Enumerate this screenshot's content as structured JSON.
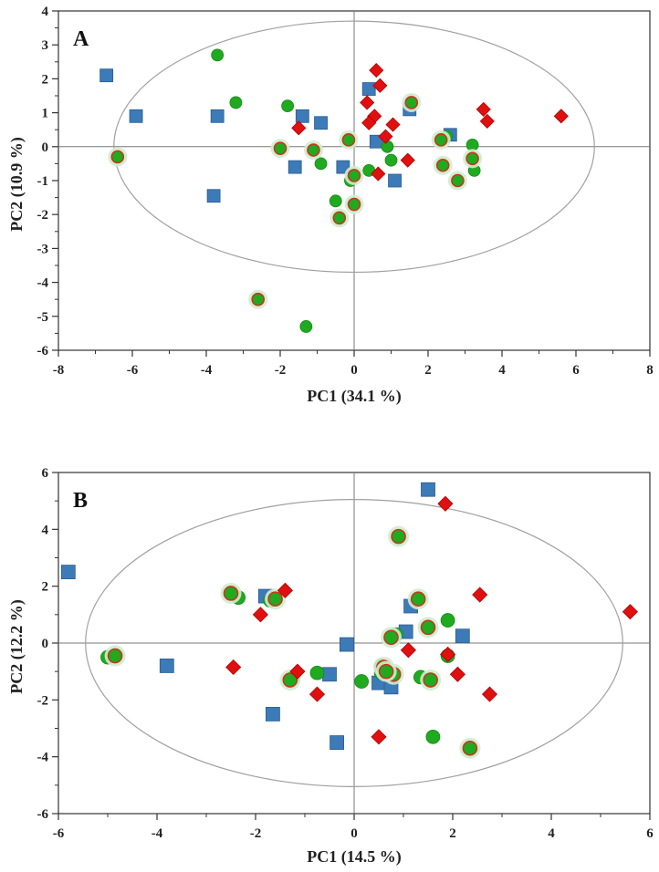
{
  "chart_data": [
    {
      "type": "scatter",
      "panel_label": "A",
      "xlabel": "PC1 (34.1 %)",
      "ylabel": "PC2 (10.9 %)",
      "xlim": [
        -8,
        8
      ],
      "ylim": [
        -6,
        4
      ],
      "xticks": [
        -8,
        -6,
        -4,
        -2,
        0,
        2,
        4,
        6,
        8
      ],
      "yticks": [
        4,
        3,
        2,
        1,
        0,
        -1,
        -2,
        -3,
        -4,
        -5,
        -6
      ],
      "confidence_ellipse": {
        "center": [
          0,
          0
        ],
        "radius_x": 6.5,
        "radius_y": 3.7
      },
      "colors": {
        "square": "#3d7ab8",
        "circle": "#1faa1f",
        "diamond": "#e01010",
        "circle_ringed_edge": "#c8361a",
        "glow": "#cfeccf"
      },
      "series": [
        {
          "name": "square",
          "marker": "square",
          "points": [
            [
              -6.7,
              2.1
            ],
            [
              -5.9,
              0.9
            ],
            [
              -3.7,
              0.9
            ],
            [
              -3.8,
              -1.45
            ],
            [
              -1.4,
              0.9
            ],
            [
              -0.9,
              0.7
            ],
            [
              -1.6,
              -0.6
            ],
            [
              -0.3,
              -0.6
            ],
            [
              0.4,
              1.7
            ],
            [
              0.6,
              0.15
            ],
            [
              1.5,
              1.1
            ],
            [
              2.6,
              0.35
            ],
            [
              1.1,
              -1.0
            ]
          ]
        },
        {
          "name": "circle",
          "marker": "circle",
          "points": [
            [
              -3.7,
              2.7
            ],
            [
              -3.2,
              1.3
            ],
            [
              -1.8,
              1.2
            ],
            [
              -0.9,
              -0.5
            ],
            [
              -0.1,
              -1.0
            ],
            [
              0.9,
              0.0
            ],
            [
              1.0,
              -0.4
            ],
            [
              0.4,
              -0.7
            ],
            [
              -0.5,
              -1.6
            ],
            [
              -1.3,
              -5.3
            ],
            [
              2.5,
              0.3
            ],
            [
              3.2,
              0.05
            ],
            [
              3.25,
              -0.7
            ]
          ]
        },
        {
          "name": "circle-ringed",
          "marker": "circle-ringed",
          "points": [
            [
              -6.4,
              -0.3
            ],
            [
              -2.0,
              -0.05
            ],
            [
              -1.1,
              -0.1
            ],
            [
              -0.15,
              0.2
            ],
            [
              0.0,
              -0.85
            ],
            [
              -0.4,
              -2.1
            ],
            [
              0.0,
              -1.7
            ],
            [
              1.55,
              1.3
            ],
            [
              2.35,
              0.2
            ],
            [
              2.4,
              -0.55
            ],
            [
              2.8,
              -1.0
            ],
            [
              3.2,
              -0.35
            ],
            [
              -2.6,
              -4.5
            ]
          ]
        },
        {
          "name": "diamond",
          "marker": "diamond",
          "points": [
            [
              0.6,
              2.25
            ],
            [
              0.7,
              1.8
            ],
            [
              0.35,
              1.3
            ],
            [
              0.55,
              0.9
            ],
            [
              0.85,
              0.3
            ],
            [
              1.05,
              0.65
            ],
            [
              0.4,
              0.7
            ],
            [
              -1.5,
              0.55
            ],
            [
              1.45,
              -0.4
            ],
            [
              0.65,
              -0.8
            ],
            [
              3.5,
              1.1
            ],
            [
              3.6,
              0.75
            ],
            [
              5.6,
              0.9
            ]
          ]
        }
      ]
    },
    {
      "type": "scatter",
      "panel_label": "B",
      "xlabel": "PC1 (14.5 %)",
      "ylabel": "PC2 (12.2 %)",
      "xlim": [
        -6,
        6
      ],
      "ylim": [
        -6,
        6
      ],
      "xticks": [
        -6,
        -4,
        -2,
        0,
        2,
        4,
        6
      ],
      "yticks": [
        6,
        4,
        2,
        0,
        -2,
        -4,
        -6
      ],
      "confidence_ellipse": {
        "center": [
          0,
          0
        ],
        "radius_x": 5.45,
        "radius_y": 5.05
      },
      "colors": {
        "square": "#3d7ab8",
        "circle": "#1faa1f",
        "diamond": "#e01010",
        "circle_ringed_edge": "#c8361a",
        "glow": "#cfeccf"
      },
      "series": [
        {
          "name": "square",
          "marker": "square",
          "points": [
            [
              -5.8,
              2.5
            ],
            [
              -3.8,
              -0.8
            ],
            [
              -1.8,
              1.65
            ],
            [
              -1.65,
              -2.5
            ],
            [
              -0.5,
              -1.1
            ],
            [
              -0.15,
              -0.05
            ],
            [
              -0.35,
              -3.5
            ],
            [
              0.5,
              -1.4
            ],
            [
              0.75,
              -1.55
            ],
            [
              1.05,
              0.4
            ],
            [
              1.15,
              1.3
            ],
            [
              1.5,
              5.4
            ],
            [
              2.2,
              0.25
            ]
          ]
        },
        {
          "name": "circle",
          "marker": "circle",
          "points": [
            [
              -5.0,
              -0.5
            ],
            [
              -2.35,
              1.6
            ],
            [
              -1.7,
              1.5
            ],
            [
              -1.25,
              -1.25
            ],
            [
              -0.75,
              -1.05
            ],
            [
              0.15,
              -1.35
            ],
            [
              0.85,
              0.3
            ],
            [
              1.35,
              -1.2
            ],
            [
              1.9,
              0.8
            ],
            [
              1.9,
              -0.45
            ],
            [
              1.6,
              -3.3
            ],
            [
              0.55,
              -1.05
            ],
            [
              0.55,
              -0.8
            ]
          ]
        },
        {
          "name": "circle-ringed",
          "marker": "circle-ringed",
          "points": [
            [
              -4.85,
              -0.45
            ],
            [
              -2.5,
              1.75
            ],
            [
              -1.6,
              1.55
            ],
            [
              -1.3,
              -1.3
            ],
            [
              0.6,
              -0.85
            ],
            [
              0.8,
              -1.1
            ],
            [
              0.75,
              0.2
            ],
            [
              0.9,
              3.75
            ],
            [
              1.3,
              1.55
            ],
            [
              1.5,
              0.55
            ],
            [
              1.55,
              -1.3
            ],
            [
              2.35,
              -3.7
            ],
            [
              0.65,
              -1.0
            ]
          ]
        },
        {
          "name": "diamond",
          "marker": "diamond",
          "points": [
            [
              -2.45,
              -0.85
            ],
            [
              -1.9,
              1.0
            ],
            [
              -1.4,
              1.85
            ],
            [
              -1.15,
              -1.0
            ],
            [
              -0.75,
              -1.8
            ],
            [
              0.5,
              -3.3
            ],
            [
              1.1,
              -0.25
            ],
            [
              1.85,
              4.9
            ],
            [
              1.9,
              -0.4
            ],
            [
              2.1,
              -1.1
            ],
            [
              2.55,
              1.7
            ],
            [
              2.75,
              -1.8
            ],
            [
              5.6,
              1.1
            ]
          ]
        }
      ]
    }
  ]
}
